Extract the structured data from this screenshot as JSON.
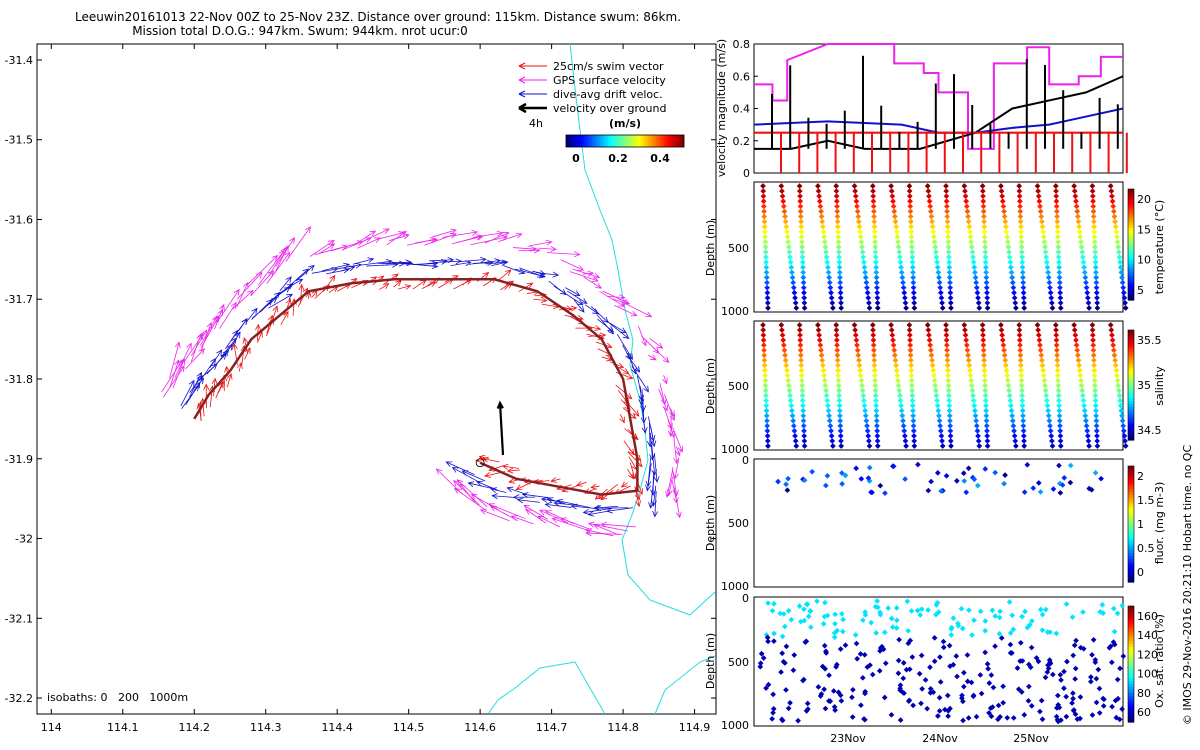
{
  "header": {
    "line1": "Leeuwin20161013 22-Nov 00Z to 25-Nov 23Z. Distance over ground: 115km. Distance swum: 86km.",
    "line2": "Mission total D.O.G.: 947km. Swum: 944km. nrot ucur:0"
  },
  "map": {
    "x_ticks": [
      "114",
      "114.1",
      "114.2",
      "114.3",
      "114.4",
      "114.5",
      "114.6",
      "114.7",
      "114.8",
      "114.9"
    ],
    "y_ticks": [
      "-31.4",
      "-31.5",
      "-31.6",
      "-31.7",
      "-31.8",
      "-31.9",
      "-32",
      "-32.1",
      "-32.2"
    ],
    "xlim": [
      113.98,
      114.93
    ],
    "ylim": [
      -32.22,
      -31.38
    ],
    "legend": {
      "swim": "25cm/s swim vector",
      "gps": "GPS surface velocity",
      "drift": "dive-avg drift veloc.",
      "ground": "velocity over ground",
      "interval": "4h"
    },
    "colorbar": {
      "title": "(m/s)",
      "ticks": [
        "0",
        "0.2",
        "0.4"
      ]
    },
    "isobaths": "isobaths: 0   200   1000m",
    "colors": {
      "swim": "#ee1111",
      "gps": "#ee22ee",
      "drift": "#1111cc",
      "ground": "#000000",
      "isobath": "#22dddd",
      "track": "#882222"
    }
  },
  "panels": {
    "velocity": {
      "ylabel": "velocity magnitude (m/s)",
      "y_ticks": [
        "0",
        "0.2",
        "0.4",
        "0.6",
        "0.8"
      ]
    },
    "temperature": {
      "ylabel": "Depth (m)",
      "cbar_label": "temperature (°C)",
      "cbar_ticks": [
        "20",
        "15",
        "10",
        "5"
      ],
      "y_ticks": [
        "500",
        "1000"
      ]
    },
    "salinity": {
      "ylabel": "Depth (m)",
      "cbar_label": "salinity",
      "cbar_ticks": [
        "35.5",
        "35",
        "34.5"
      ],
      "y_ticks": [
        "500",
        "1000"
      ]
    },
    "fluor": {
      "ylabel": "Depth (m)",
      "cbar_label": "fluor. (mg m-3)",
      "cbar_ticks": [
        "2",
        "1.5",
        "1",
        "0.5",
        "0"
      ],
      "y_ticks": [
        "0",
        "500",
        "1000"
      ]
    },
    "oxygen": {
      "ylabel": "Depth (m)",
      "cbar_label": "Ox. sat. ratio (%)",
      "cbar_ticks": [
        "160",
        "140",
        "120",
        "100",
        "80",
        "60"
      ],
      "y_ticks": [
        "0",
        "500",
        "1000"
      ]
    },
    "x_ticks": [
      "23Nov",
      "24Nov",
      "25Nov"
    ]
  },
  "footer": "© IMOS 29-Nov-2016 20:21:10 Hobart time. no QC",
  "chart_data": [
    {
      "type": "scatter",
      "title": "Leeuwin20161013 22-Nov 00Z to 25-Nov 23Z. Distance over ground: 115km. Distance swum: 86km.",
      "xlabel": "",
      "ylabel": "",
      "xlim": [
        113.98,
        114.93
      ],
      "ylim": [
        -32.22,
        -31.38
      ],
      "series": [
        {
          "name": "glider track",
          "points": [
            [
              114.2,
              -31.85
            ],
            [
              114.22,
              -31.82
            ],
            [
              114.25,
              -31.79
            ],
            [
              114.28,
              -31.75
            ],
            [
              114.32,
              -31.72
            ],
            [
              114.36,
              -31.69
            ],
            [
              114.42,
              -31.68
            ],
            [
              114.48,
              -31.675
            ],
            [
              114.55,
              -31.675
            ],
            [
              114.62,
              -31.675
            ],
            [
              114.68,
              -31.69
            ],
            [
              114.73,
              -31.72
            ],
            [
              114.77,
              -31.75
            ],
            [
              114.8,
              -31.8
            ],
            [
              114.81,
              -31.85
            ],
            [
              114.82,
              -31.9
            ],
            [
              114.82,
              -31.94
            ],
            [
              114.77,
              -31.945
            ],
            [
              114.71,
              -31.935
            ],
            [
              114.65,
              -31.925
            ],
            [
              114.6,
              -31.905
            ]
          ]
        }
      ]
    },
    {
      "type": "line",
      "title": "",
      "ylabel": "velocity magnitude (m/s)",
      "ylim": [
        0,
        0.8
      ],
      "x_ticks": [
        "23Nov",
        "24Nov",
        "25Nov"
      ],
      "series": [
        {
          "name": "GPS surface velocity",
          "color": "#ee22ee",
          "points": [
            [
              0,
              0.55
            ],
            [
              0.05,
              0.55
            ],
            [
              0.05,
              0.45
            ],
            [
              0.09,
              0.45
            ],
            [
              0.09,
              0.7
            ],
            [
              0.2,
              0.8
            ],
            [
              0.38,
              0.8
            ],
            [
              0.38,
              0.68
            ],
            [
              0.46,
              0.68
            ],
            [
              0.46,
              0.62
            ],
            [
              0.5,
              0.62
            ],
            [
              0.5,
              0.5
            ],
            [
              0.58,
              0.5
            ],
            [
              0.58,
              0.15
            ],
            [
              0.65,
              0.15
            ],
            [
              0.65,
              0.68
            ],
            [
              0.74,
              0.68
            ],
            [
              0.74,
              0.78
            ],
            [
              0.8,
              0.78
            ],
            [
              0.8,
              0.55
            ],
            [
              0.88,
              0.55
            ],
            [
              0.88,
              0.6
            ],
            [
              0.94,
              0.6
            ],
            [
              0.94,
              0.72
            ],
            [
              1,
              0.72
            ]
          ]
        },
        {
          "name": "dive-avg drift veloc.",
          "color": "#1111cc",
          "points": [
            [
              0,
              0.3
            ],
            [
              0.2,
              0.32
            ],
            [
              0.4,
              0.3
            ],
            [
              0.5,
              0.25
            ],
            [
              0.6,
              0.25
            ],
            [
              0.7,
              0.28
            ],
            [
              0.8,
              0.3
            ],
            [
              0.9,
              0.35
            ],
            [
              1,
              0.4
            ]
          ]
        },
        {
          "name": "velocity over ground",
          "color": "#000000",
          "points": [
            [
              0,
              0.15
            ],
            [
              0.1,
              0.15
            ],
            [
              0.2,
              0.2
            ],
            [
              0.3,
              0.15
            ],
            [
              0.45,
              0.15
            ],
            [
              0.6,
              0.25
            ],
            [
              0.7,
              0.4
            ],
            [
              0.8,
              0.45
            ],
            [
              0.9,
              0.5
            ],
            [
              1,
              0.6
            ]
          ]
        },
        {
          "name": "swim speed",
          "color": "#ee1111",
          "points": [
            [
              0,
              0.25
            ],
            [
              1,
              0.25
            ]
          ]
        }
      ]
    },
    {
      "type": "heatmap",
      "ylabel": "Depth (m)",
      "cbar_label": "temperature (°C)",
      "ylim": [
        1000,
        0
      ],
      "clim": [
        3,
        22
      ],
      "profiles": 20
    },
    {
      "type": "heatmap",
      "ylabel": "Depth (m)",
      "cbar_label": "salinity",
      "ylim": [
        1000,
        0
      ],
      "clim": [
        34.3,
        35.8
      ],
      "profiles": 20
    },
    {
      "type": "scatter",
      "ylabel": "Depth (m)",
      "cbar_label": "fluor. (mg m-3)",
      "ylim": [
        1000,
        0
      ],
      "clim": [
        0,
        2
      ]
    },
    {
      "type": "scatter",
      "ylabel": "Depth (m)",
      "cbar_label": "Ox. sat. ratio (%)",
      "ylim": [
        1000,
        0
      ],
      "clim": [
        60,
        165
      ]
    }
  ]
}
